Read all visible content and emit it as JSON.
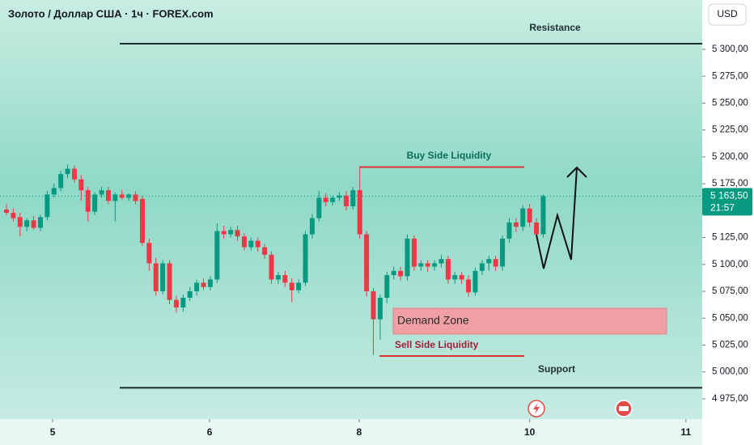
{
  "chart_data": {
    "type": "candlestick",
    "title": "Золото / Доллар США · 1ч · FOREX.com",
    "currency": "USD",
    "up_color": "#089981",
    "down_color": "#f23645",
    "x": [
      0,
      1,
      2,
      3,
      4,
      5,
      6,
      7,
      8,
      9,
      10,
      11,
      12,
      13,
      14,
      15,
      16,
      17,
      18,
      19,
      20,
      21,
      22,
      23,
      24,
      25,
      26,
      27,
      28,
      29,
      30,
      31,
      32,
      33,
      34,
      35,
      36,
      37,
      38,
      39,
      40,
      41,
      42,
      43,
      44,
      45,
      46,
      47,
      48,
      49,
      50,
      51,
      52,
      53,
      54,
      55,
      56,
      57,
      58,
      59,
      60,
      61,
      62,
      63,
      64,
      65,
      66,
      67,
      68,
      69,
      70,
      71,
      72,
      73,
      74,
      75,
      76,
      77,
      78,
      79
    ],
    "open": [
      5151,
      5148,
      5144,
      5135,
      5141,
      5134,
      5144,
      5165,
      5171,
      5184,
      5189,
      5179,
      5169,
      5149,
      5165,
      5169,
      5159,
      5165,
      5162,
      5165,
      5161,
      5120,
      5101,
      5075,
      5101,
      5067,
      5060,
      5069,
      5075,
      5083,
      5079,
      5086,
      5131,
      5128,
      5132,
      5126,
      5116,
      5122,
      5116,
      5109,
      5086,
      5090,
      5083,
      5076,
      5083,
      5128,
      5143,
      5162,
      5158,
      5162,
      5164,
      5154,
      5169,
      5128,
      5075,
      5049,
      5069,
      5090,
      5094,
      5089,
      5124,
      5098,
      5101,
      5098,
      5101,
      5105,
      5086,
      5090,
      5086,
      5074,
      5094,
      5101,
      5105,
      5098,
      5124,
      5139,
      5135,
      5152,
      5139,
      5128
    ],
    "high": [
      5156,
      5152,
      5148,
      5143,
      5145,
      5146,
      5168,
      5175,
      5187,
      5193,
      5192,
      5183,
      5172,
      5167,
      5172,
      5172,
      5167,
      5169,
      5166,
      5168,
      5164,
      5124,
      5106,
      5104,
      5104,
      5071,
      5072,
      5079,
      5086,
      5087,
      5089,
      5138,
      5136,
      5135,
      5136,
      5129,
      5125,
      5125,
      5119,
      5112,
      5093,
      5094,
      5087,
      5086,
      5131,
      5147,
      5168,
      5166,
      5164,
      5167,
      5168,
      5172,
      5191,
      5131,
      5078,
      5072,
      5093,
      5098,
      5098,
      5128,
      5127,
      5104,
      5104,
      5104,
      5109,
      5108,
      5093,
      5093,
      5090,
      5097,
      5104,
      5108,
      5108,
      5127,
      5143,
      5143,
      5155,
      5156,
      5143,
      5165
    ],
    "low": [
      5146,
      5140,
      5126,
      5131,
      5132,
      5131,
      5141,
      5162,
      5168,
      5180,
      5176,
      5159,
      5140,
      5146,
      5162,
      5156,
      5140,
      5160,
      5159,
      5156,
      5117,
      5094,
      5071,
      5072,
      5063,
      5055,
      5056,
      5066,
      5071,
      5076,
      5076,
      5083,
      5124,
      5125,
      5122,
      5113,
      5113,
      5112,
      5105,
      5082,
      5082,
      5079,
      5065,
      5073,
      5080,
      5124,
      5140,
      5154,
      5155,
      5159,
      5150,
      5151,
      5124,
      5070,
      5016,
      5030,
      5064,
      5086,
      5085,
      5085,
      5094,
      5094,
      5093,
      5094,
      5097,
      5082,
      5082,
      5082,
      5070,
      5071,
      5090,
      5094,
      5094,
      5094,
      5120,
      5130,
      5131,
      5135,
      5125,
      5125
    ],
    "close": [
      5148,
      5143,
      5135,
      5141,
      5134,
      5144,
      5165,
      5171,
      5184,
      5189,
      5179,
      5169,
      5149,
      5165,
      5169,
      5159,
      5165,
      5162,
      5165,
      5159,
      5120,
      5101,
      5075,
      5101,
      5067,
      5060,
      5069,
      5075,
      5083,
      5079,
      5086,
      5131,
      5128,
      5132,
      5126,
      5116,
      5122,
      5116,
      5109,
      5086,
      5090,
      5083,
      5076,
      5083,
      5128,
      5143,
      5162,
      5158,
      5162,
      5164,
      5154,
      5169,
      5128,
      5075,
      5049,
      5069,
      5090,
      5094,
      5089,
      5124,
      5098,
      5101,
      5098,
      5101,
      5105,
      5086,
      5090,
      5086,
      5074,
      5094,
      5101,
      5105,
      5098,
      5124,
      5139,
      5135,
      5152,
      5139,
      5128,
      5163.5
    ],
    "xlim": [
      -0.95,
      102.4
    ],
    "xticks": [
      {
        "value": 6.8,
        "label": "5"
      },
      {
        "value": 29.9,
        "label": "6"
      },
      {
        "value": 51.9,
        "label": "8"
      },
      {
        "value": 77.0,
        "label": "10"
      },
      {
        "value": 100.0,
        "label": "11"
      }
    ],
    "ylim": [
      4958.4,
      5345.9
    ],
    "yticks": [
      {
        "value": 4975,
        "label": "4 975,00"
      },
      {
        "value": 5000,
        "label": "5 000,00"
      },
      {
        "value": 5025,
        "label": "5 025,00"
      },
      {
        "value": 5050,
        "label": "5 050,00"
      },
      {
        "value": 5075,
        "label": "5 075,00"
      },
      {
        "value": 5100,
        "label": "5 100,00"
      },
      {
        "value": 5125,
        "label": "5 125,00"
      },
      {
        "value": 5150,
        "label": "5 150,00"
      },
      {
        "value": 5175,
        "label": "5 175,00"
      },
      {
        "value": 5200,
        "label": "5 200,00"
      },
      {
        "value": 5225,
        "label": "5 225,00"
      },
      {
        "value": 5250,
        "label": "5 250,00"
      },
      {
        "value": 5275,
        "label": "5 275,00"
      },
      {
        "value": 5300,
        "label": "5 300,00"
      }
    ],
    "last_price": {
      "value": 5163.5,
      "label": "5 163,50",
      "countdown": "21:57"
    },
    "annotations": [
      {
        "text": "Resistance",
        "level": 5305.3,
        "color": "#1e2f30"
      },
      {
        "text": "Buy Side Liquidity",
        "level": 5190.5,
        "color": "#e03434",
        "text_color": "#0b6b5a"
      },
      {
        "text": "Demand Zone",
        "range": [
          5035.3,
          5059.2
        ],
        "color": "#f0a0a5",
        "text_color": "#2b2b2b"
      },
      {
        "text": "Sell Side Liquidity",
        "level": 5014.8,
        "color": "#e03434",
        "text_color": "#a3203a"
      },
      {
        "text": "Support",
        "level": 4985.3,
        "color": "#1e2f30"
      }
    ]
  }
}
